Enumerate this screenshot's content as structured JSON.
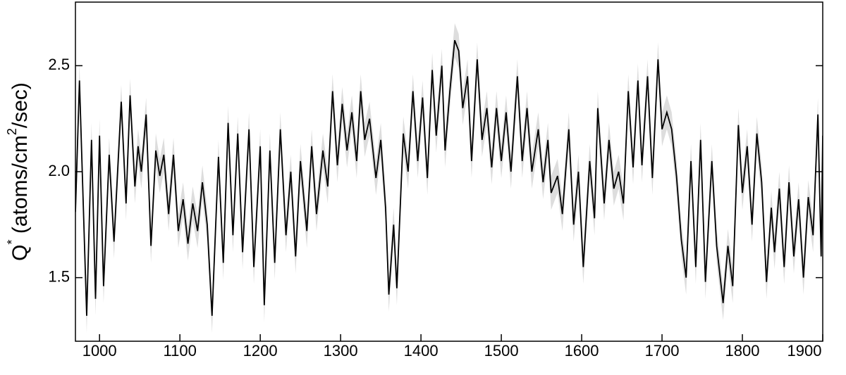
{
  "chart_data": {
    "type": "line",
    "ylabel_parts": [
      "Q",
      "*",
      " (atoms/cm",
      "2",
      "/sec)"
    ],
    "x": [
      970,
      975,
      984,
      990,
      995,
      1000,
      1005,
      1012,
      1018,
      1027,
      1033,
      1038,
      1044,
      1048,
      1052,
      1058,
      1064,
      1070,
      1075,
      1080,
      1086,
      1092,
      1098,
      1104,
      1110,
      1116,
      1122,
      1128,
      1134,
      1140,
      1148,
      1154,
      1160,
      1166,
      1172,
      1178,
      1186,
      1192,
      1200,
      1205,
      1212,
      1218,
      1225,
      1232,
      1238,
      1244,
      1250,
      1258,
      1264,
      1270,
      1278,
      1284,
      1290,
      1296,
      1302,
      1308,
      1314,
      1320,
      1325,
      1330,
      1336,
      1344,
      1350,
      1356,
      1360,
      1366,
      1370,
      1378,
      1384,
      1390,
      1396,
      1402,
      1408,
      1414,
      1419,
      1426,
      1430,
      1436,
      1442,
      1447,
      1452,
      1458,
      1463,
      1470,
      1476,
      1482,
      1488,
      1494,
      1500,
      1506,
      1512,
      1520,
      1526,
      1532,
      1538,
      1546,
      1552,
      1558,
      1562,
      1570,
      1576,
      1584,
      1590,
      1596,
      1602,
      1610,
      1616,
      1620,
      1628,
      1634,
      1640,
      1646,
      1652,
      1658,
      1664,
      1670,
      1675,
      1682,
      1688,
      1695,
      1700,
      1706,
      1712,
      1718,
      1724,
      1730,
      1736,
      1742,
      1748,
      1754,
      1762,
      1768,
      1776,
      1782,
      1788,
      1795,
      1800,
      1806,
      1812,
      1818,
      1824,
      1830,
      1836,
      1840,
      1846,
      1852,
      1858,
      1864,
      1870,
      1876,
      1882,
      1888,
      1894,
      1898,
      1900
    ],
    "series": [
      {
        "color": "#000000",
        "band_color": "#dddddd",
        "band_halfwidth": 0.08,
        "values": [
          1.81,
          2.43,
          1.32,
          2.15,
          1.4,
          2.17,
          1.46,
          2.08,
          1.67,
          2.33,
          1.85,
          2.36,
          1.93,
          2.12,
          2.0,
          2.27,
          1.65,
          2.1,
          1.98,
          2.08,
          1.8,
          2.08,
          1.72,
          1.87,
          1.66,
          1.85,
          1.72,
          1.95,
          1.75,
          1.32,
          2.07,
          1.57,
          2.23,
          1.7,
          2.18,
          1.62,
          2.2,
          1.55,
          2.12,
          1.37,
          2.1,
          1.57,
          2.2,
          1.7,
          2.0,
          1.6,
          2.05,
          1.72,
          2.12,
          1.8,
          2.1,
          1.93,
          2.38,
          2.03,
          2.32,
          2.1,
          2.28,
          2.05,
          2.38,
          2.15,
          2.25,
          1.97,
          2.15,
          1.83,
          1.42,
          1.75,
          1.45,
          2.18,
          2.0,
          2.38,
          2.05,
          2.35,
          1.97,
          2.48,
          2.17,
          2.5,
          2.1,
          2.38,
          2.62,
          2.57,
          2.3,
          2.45,
          2.05,
          2.53,
          2.15,
          2.3,
          2.02,
          2.3,
          2.05,
          2.28,
          2.0,
          2.45,
          2.05,
          2.3,
          2.0,
          2.2,
          1.95,
          2.15,
          1.9,
          1.98,
          1.8,
          2.2,
          1.75,
          2.0,
          1.55,
          2.05,
          1.78,
          2.3,
          1.85,
          2.15,
          1.92,
          2.0,
          1.85,
          2.38,
          2.02,
          2.43,
          2.03,
          2.45,
          1.97,
          2.53,
          2.2,
          2.28,
          2.2,
          1.98,
          1.68,
          1.5,
          2.05,
          1.55,
          2.15,
          1.48,
          2.05,
          1.65,
          1.38,
          1.65,
          1.46,
          2.22,
          1.9,
          2.12,
          1.75,
          2.18,
          1.95,
          1.48,
          1.83,
          1.62,
          1.92,
          1.55,
          1.95,
          1.6,
          1.87,
          1.5,
          1.88,
          1.7,
          2.27,
          1.6,
          2.17
        ]
      }
    ],
    "xlim": [
      970,
      1900
    ],
    "ylim": [
      1.2,
      2.8
    ],
    "xticks": [
      1000,
      1100,
      1200,
      1300,
      1400,
      1500,
      1600,
      1700,
      1800,
      1900
    ],
    "yticks": [
      1.5,
      {
        "value": 2,
        "label": "2.0"
      },
      2.5
    ],
    "grid": false
  }
}
